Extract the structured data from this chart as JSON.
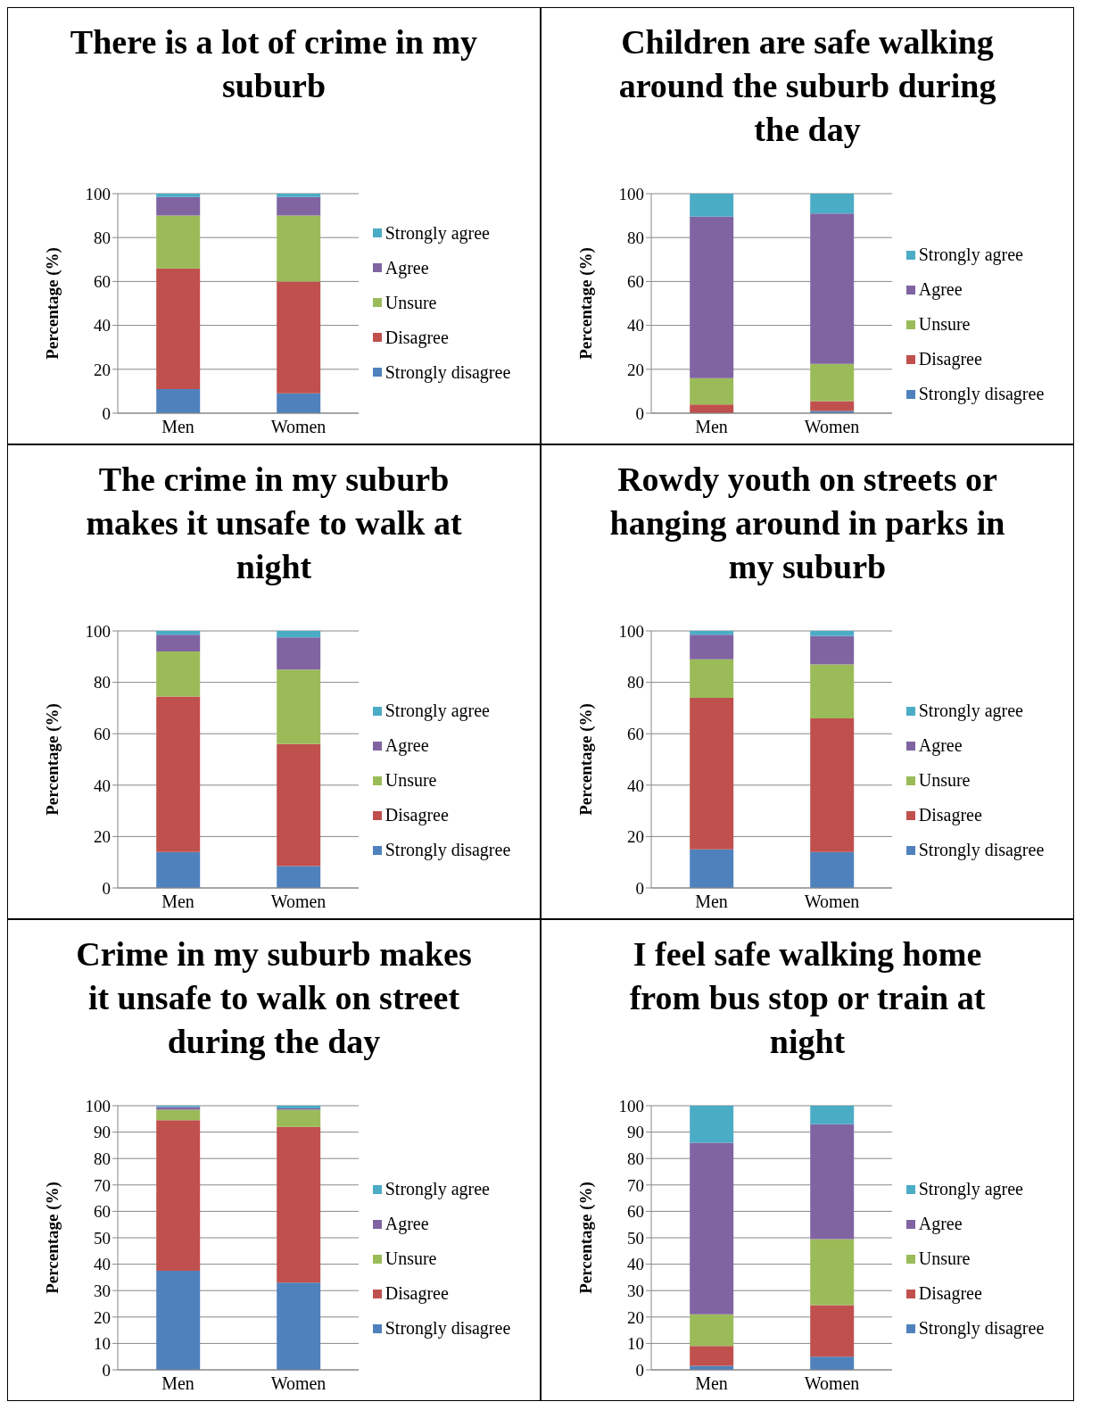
{
  "chart_data": [
    {
      "type": "bar",
      "stacked": true,
      "title": "There is a lot of crime in my suburb",
      "ylabel": "Percentage (%)",
      "categories": [
        "Men",
        "Women"
      ],
      "ylim": [
        0,
        100
      ],
      "yticks": [
        0,
        20,
        40,
        60,
        80,
        100
      ],
      "grid": "y",
      "legend": "right",
      "series": [
        {
          "name": "Strongly disagree",
          "color": "#4f81bd",
          "values": [
            11,
            9
          ]
        },
        {
          "name": "Disagree",
          "color": "#c0504d",
          "values": [
            55,
            51
          ]
        },
        {
          "name": "Unsure",
          "color": "#9bbb59",
          "values": [
            24,
            30
          ]
        },
        {
          "name": "Agree",
          "color": "#8064a2",
          "values": [
            8.5,
            8.5
          ]
        },
        {
          "name": "Strongly agree",
          "color": "#4bacc6",
          "values": [
            1.5,
            1.5
          ]
        }
      ]
    },
    {
      "type": "bar",
      "stacked": true,
      "title": "Children are safe walking around the suburb during the day",
      "ylabel": "Percentage (%)",
      "categories": [
        "Men",
        "Women"
      ],
      "ylim": [
        0,
        100
      ],
      "yticks": [
        0,
        20,
        40,
        60,
        80,
        100
      ],
      "grid": "y",
      "legend": "right",
      "series": [
        {
          "name": "Strongly disagree",
          "color": "#4f81bd",
          "values": [
            0,
            1
          ]
        },
        {
          "name": "Disagree",
          "color": "#c0504d",
          "values": [
            4,
            4.5
          ]
        },
        {
          "name": "Unsure",
          "color": "#9bbb59",
          "values": [
            12,
            17
          ]
        },
        {
          "name": "Agree",
          "color": "#8064a2",
          "values": [
            73.5,
            68.5
          ]
        },
        {
          "name": "Strongly agree",
          "color": "#4bacc6",
          "values": [
            10.5,
            9
          ]
        }
      ]
    },
    {
      "type": "bar",
      "stacked": true,
      "title": "The crime in my suburb makes it unsafe to walk at night",
      "ylabel": "Percentage (%)",
      "categories": [
        "Men",
        "Women"
      ],
      "ylim": [
        0,
        100
      ],
      "yticks": [
        0,
        20,
        40,
        60,
        80,
        100
      ],
      "grid": "y",
      "legend": "right",
      "series": [
        {
          "name": "Strongly disagree",
          "color": "#4f81bd",
          "values": [
            14,
            8.5
          ]
        },
        {
          "name": "Disagree",
          "color": "#c0504d",
          "values": [
            60.5,
            47.5
          ]
        },
        {
          "name": "Unsure",
          "color": "#9bbb59",
          "values": [
            17.5,
            29
          ]
        },
        {
          "name": "Agree",
          "color": "#8064a2",
          "values": [
            6.5,
            12.5
          ]
        },
        {
          "name": "Strongly agree",
          "color": "#4bacc6",
          "values": [
            1.5,
            2.5
          ]
        }
      ]
    },
    {
      "type": "bar",
      "stacked": true,
      "title": "Rowdy youth on streets or hanging around in parks in my suburb",
      "ylabel": "Percentage (%)",
      "categories": [
        "Men",
        "Women"
      ],
      "ylim": [
        0,
        100
      ],
      "yticks": [
        0,
        20,
        40,
        60,
        80,
        100
      ],
      "grid": "y",
      "legend": "right",
      "series": [
        {
          "name": "Strongly disagree",
          "color": "#4f81bd",
          "values": [
            15,
            14
          ]
        },
        {
          "name": "Disagree",
          "color": "#c0504d",
          "values": [
            59,
            52
          ]
        },
        {
          "name": "Unsure",
          "color": "#9bbb59",
          "values": [
            15,
            21
          ]
        },
        {
          "name": "Agree",
          "color": "#8064a2",
          "values": [
            9.5,
            11
          ]
        },
        {
          "name": "Strongly agree",
          "color": "#4bacc6",
          "values": [
            1.5,
            2
          ]
        }
      ]
    },
    {
      "type": "bar",
      "stacked": true,
      "title": "Crime in my suburb makes it unsafe to walk on street during the day",
      "ylabel": "Percentage (%)",
      "categories": [
        "Men",
        "Women"
      ],
      "ylim": [
        0,
        100
      ],
      "yticks": [
        0,
        10,
        20,
        30,
        40,
        50,
        60,
        70,
        80,
        90,
        100
      ],
      "grid": "y",
      "legend": "right",
      "series": [
        {
          "name": "Strongly disagree",
          "color": "#4f81bd",
          "values": [
            37.5,
            33
          ]
        },
        {
          "name": "Disagree",
          "color": "#c0504d",
          "values": [
            57,
            59
          ]
        },
        {
          "name": "Unsure",
          "color": "#9bbb59",
          "values": [
            4,
            6.5
          ]
        },
        {
          "name": "Agree",
          "color": "#8064a2",
          "values": [
            1,
            0.5
          ]
        },
        {
          "name": "Strongly agree",
          "color": "#4bacc6",
          "values": [
            0.5,
            1
          ]
        }
      ]
    },
    {
      "type": "bar",
      "stacked": true,
      "title": "I feel safe walking home from bus stop or train at night",
      "ylabel": "Percentage (%)",
      "categories": [
        "Men",
        "Women"
      ],
      "ylim": [
        0,
        100
      ],
      "yticks": [
        0,
        10,
        20,
        30,
        40,
        50,
        60,
        70,
        80,
        90,
        100
      ],
      "grid": "y",
      "legend": "right",
      "series": [
        {
          "name": "Strongly disagree",
          "color": "#4f81bd",
          "values": [
            1.5,
            5
          ]
        },
        {
          "name": "Disagree",
          "color": "#c0504d",
          "values": [
            7.5,
            19.5
          ]
        },
        {
          "name": "Unsure",
          "color": "#9bbb59",
          "values": [
            12,
            25
          ]
        },
        {
          "name": "Agree",
          "color": "#8064a2",
          "values": [
            65,
            43.5
          ]
        },
        {
          "name": "Strongly agree",
          "color": "#4bacc6",
          "values": [
            14,
            7
          ]
        }
      ]
    }
  ]
}
